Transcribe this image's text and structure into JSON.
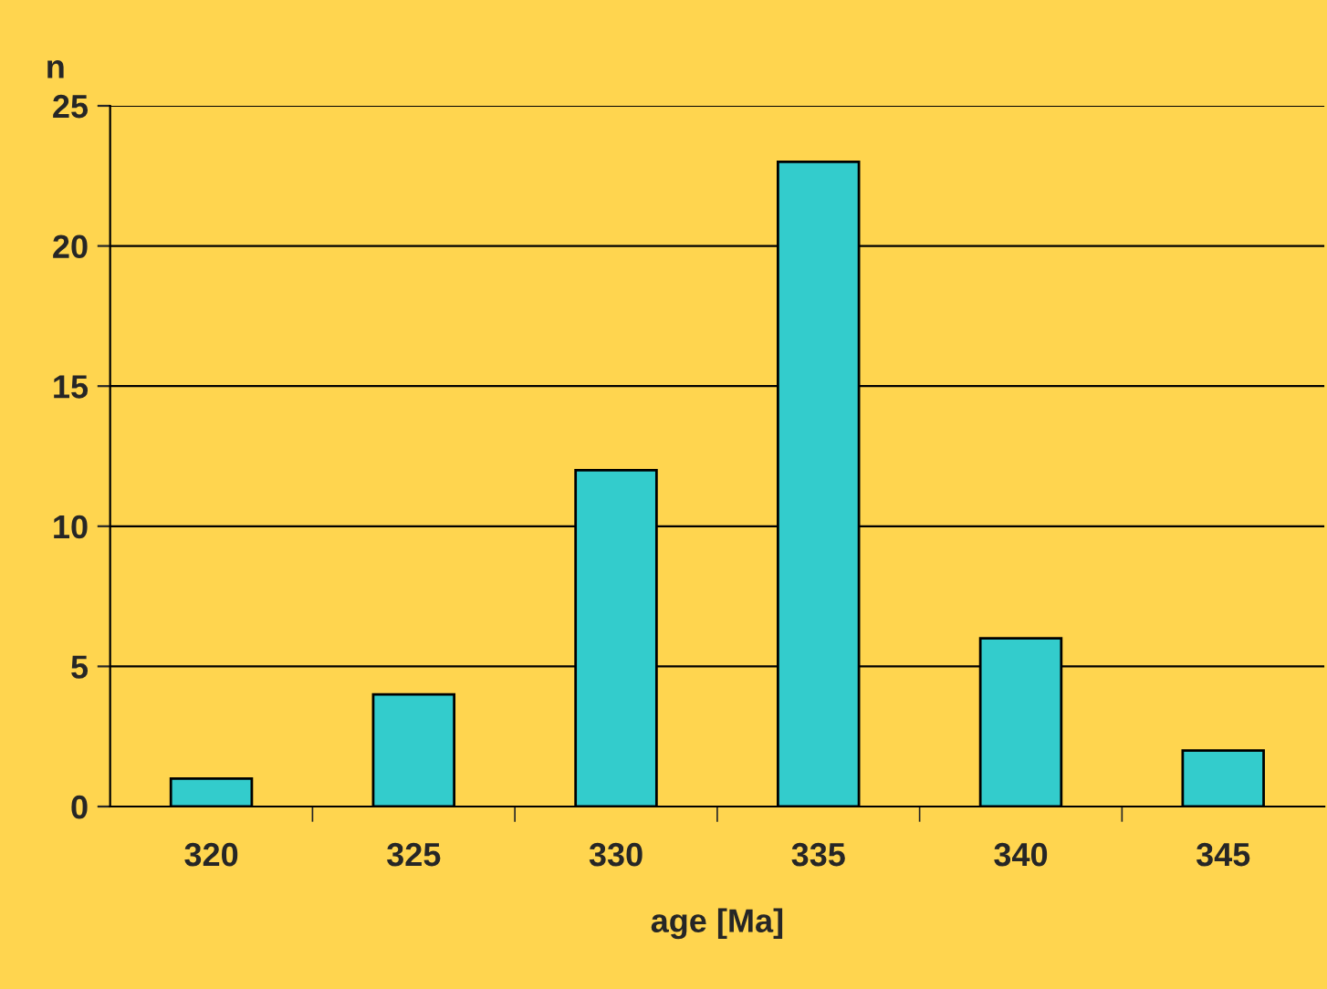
{
  "chart_data": {
    "type": "bar",
    "xlabel": "age [Ma]",
    "ylabel": "n",
    "categories": [
      "320",
      "325",
      "330",
      "335",
      "340",
      "345"
    ],
    "values": [
      1,
      4,
      12,
      23,
      6,
      2
    ],
    "color": "#33cccc",
    "ylim": [
      0,
      25
    ],
    "yticks": [
      0,
      5,
      10,
      15,
      20,
      25
    ],
    "grid": "y"
  }
}
